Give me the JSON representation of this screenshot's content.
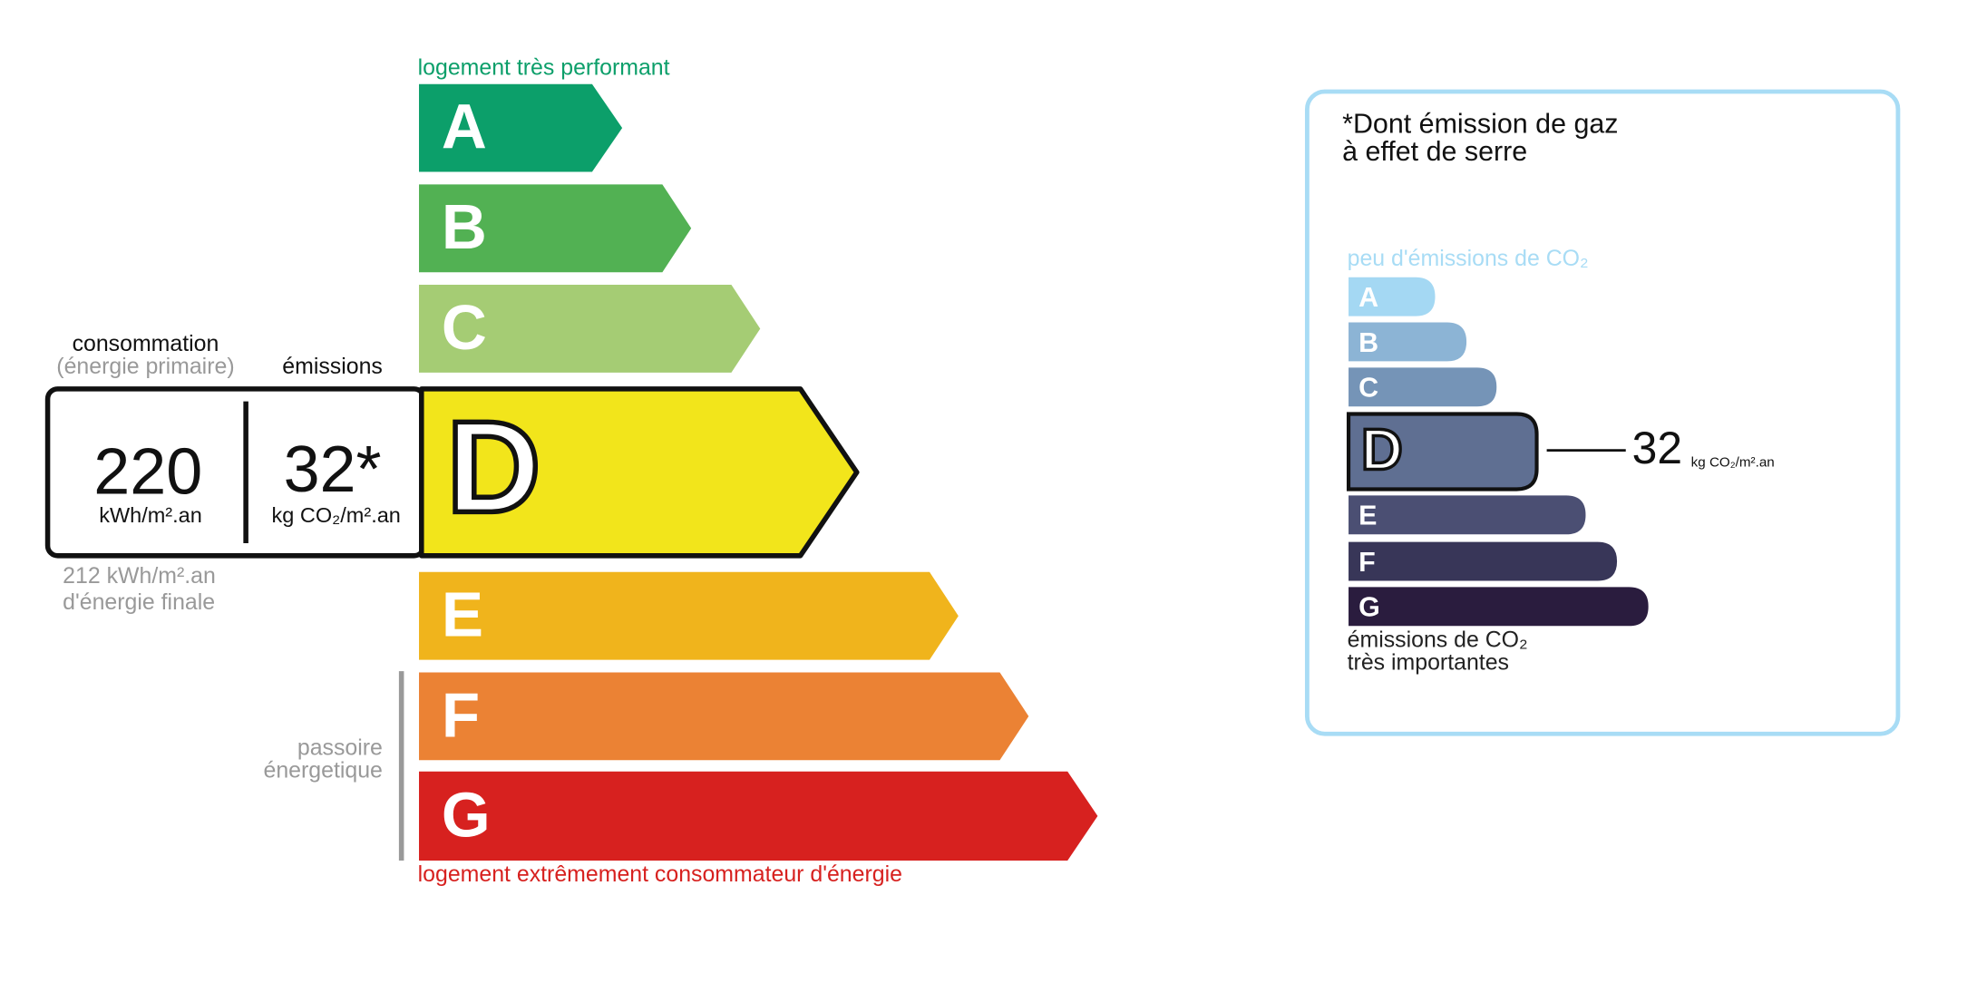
{
  "energy": {
    "top_label": "logement très performant",
    "classes": [
      "A",
      "B",
      "C",
      "D",
      "E",
      "F",
      "G"
    ],
    "bottom_label": "logement extrêmement consommateur d'énergie",
    "consumption_title": "consommation",
    "consumption_subtitle": "(énergie primaire)",
    "emissions_title": "émissions",
    "consumption_value": "220",
    "consumption_unit": "kWh/m².an",
    "emissions_value": "32*",
    "emissions_unit": "kg CO₂/m².an",
    "final_energy_value": "212 kWh/m².an",
    "final_energy_label": "d'énergie finale",
    "passoire_line1": "passoire",
    "passoire_line2": "énergetique"
  },
  "climate": {
    "title_line1": "*Dont émission de gaz",
    "title_line2": "à effet de serre",
    "top_label": "peu d'émissions de CO₂",
    "classes": [
      "A",
      "B",
      "C",
      "D",
      "E",
      "F",
      "G"
    ],
    "value": "32",
    "unit": "kg CO₂/m².an",
    "bottom_line1": "émissions de CO₂",
    "bottom_line2": "très importantes"
  }
}
